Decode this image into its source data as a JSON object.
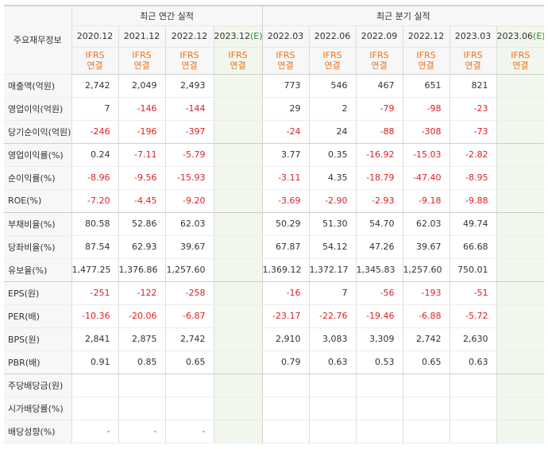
{
  "header": {
    "corner_label": "주요재무정보",
    "annual_title": "최근 연간 실적",
    "quarterly_title": "최근 분기 실적"
  },
  "annual_periods": [
    "2020.12",
    "2021.12",
    "2022.12",
    "2023.12"
  ],
  "quarterly_periods": [
    "2022.03",
    "2022.06",
    "2022.09",
    "2022.12",
    "2023.03",
    "2023.06"
  ],
  "estimate_mark": "(E)",
  "ifrs_label": [
    "IFRS",
    "연결"
  ],
  "rows": [
    {
      "label": "매출액(억원)",
      "annual": [
        "2,742",
        "2,049",
        "2,493",
        ""
      ],
      "quarterly": [
        "773",
        "546",
        "467",
        "651",
        "821",
        ""
      ]
    },
    {
      "label": "영업이익(억원)",
      "annual": [
        "7",
        "-146",
        "-144",
        ""
      ],
      "quarterly": [
        "29",
        "2",
        "-79",
        "-98",
        "-23",
        ""
      ]
    },
    {
      "label": "당기순이익(억원)",
      "annual": [
        "-246",
        "-196",
        "-397",
        ""
      ],
      "quarterly": [
        "-24",
        "24",
        "-88",
        "-308",
        "-73",
        ""
      ]
    },
    {
      "label": "영업이익률(%)",
      "annual": [
        "0.24",
        "-7.11",
        "-5.79",
        ""
      ],
      "quarterly": [
        "3.77",
        "0.35",
        "-16.92",
        "-15.03",
        "-2.82",
        ""
      ]
    },
    {
      "label": "순이익률(%)",
      "annual": [
        "-8.96",
        "-9.56",
        "-15.93",
        ""
      ],
      "quarterly": [
        "-3.11",
        "4.35",
        "-18.79",
        "-47.40",
        "-8.95",
        ""
      ]
    },
    {
      "label": "ROE(%)",
      "annual": [
        "-7.20",
        "-4.45",
        "-9.20",
        ""
      ],
      "quarterly": [
        "-3.69",
        "-2.90",
        "-2.93",
        "-9.18",
        "-9.88",
        ""
      ]
    },
    {
      "label": "부채비율(%)",
      "annual": [
        "80.58",
        "52.86",
        "62.03",
        ""
      ],
      "quarterly": [
        "50.29",
        "51.30",
        "54.70",
        "62.03",
        "49.74",
        ""
      ]
    },
    {
      "label": "당좌비율(%)",
      "annual": [
        "87.54",
        "62.93",
        "39.67",
        ""
      ],
      "quarterly": [
        "67.87",
        "54.12",
        "47.26",
        "39.67",
        "66.68",
        ""
      ]
    },
    {
      "label": "유보율(%)",
      "annual": [
        "1,477.25",
        "1,376.86",
        "1,257.60",
        ""
      ],
      "quarterly": [
        "1,369.12",
        "1,372.17",
        "1,345.83",
        "1,257.60",
        "750.01",
        ""
      ]
    },
    {
      "label": "EPS(원)",
      "annual": [
        "-251",
        "-122",
        "-258",
        ""
      ],
      "quarterly": [
        "-16",
        "7",
        "-56",
        "-193",
        "-51",
        ""
      ]
    },
    {
      "label": "PER(배)",
      "annual": [
        "-10.36",
        "-20.06",
        "-6.87",
        ""
      ],
      "quarterly": [
        "-23.17",
        "-22.76",
        "-19.46",
        "-6.88",
        "-5.72",
        ""
      ]
    },
    {
      "label": "BPS(원)",
      "annual": [
        "2,841",
        "2,875",
        "2,742",
        ""
      ],
      "quarterly": [
        "2,910",
        "3,083",
        "3,309",
        "2,742",
        "2,630",
        ""
      ]
    },
    {
      "label": "PBR(배)",
      "annual": [
        "0.91",
        "0.85",
        "0.65",
        ""
      ],
      "quarterly": [
        "0.79",
        "0.63",
        "0.53",
        "0.65",
        "0.63",
        ""
      ]
    },
    {
      "label": "주당배당금(원)",
      "annual": [
        "",
        "",
        "",
        ""
      ],
      "quarterly": [
        "",
        "",
        "",
        "",
        "",
        ""
      ]
    },
    {
      "label": "시가배당률(%)",
      "annual": [
        "",
        "",
        "",
        ""
      ],
      "quarterly": [
        "",
        "",
        "",
        "",
        "",
        ""
      ]
    },
    {
      "label": "배당성향(%)",
      "annual": [
        "-",
        "-",
        "-",
        ""
      ],
      "quarterly": [
        "",
        "",
        "",
        "",
        "",
        ""
      ]
    }
  ],
  "colors": {
    "negative": "#e02020",
    "ifrs": "#e8731f",
    "estimate_bg": "#f1f7ec",
    "estimate_mark": "#2f8a2f"
  }
}
